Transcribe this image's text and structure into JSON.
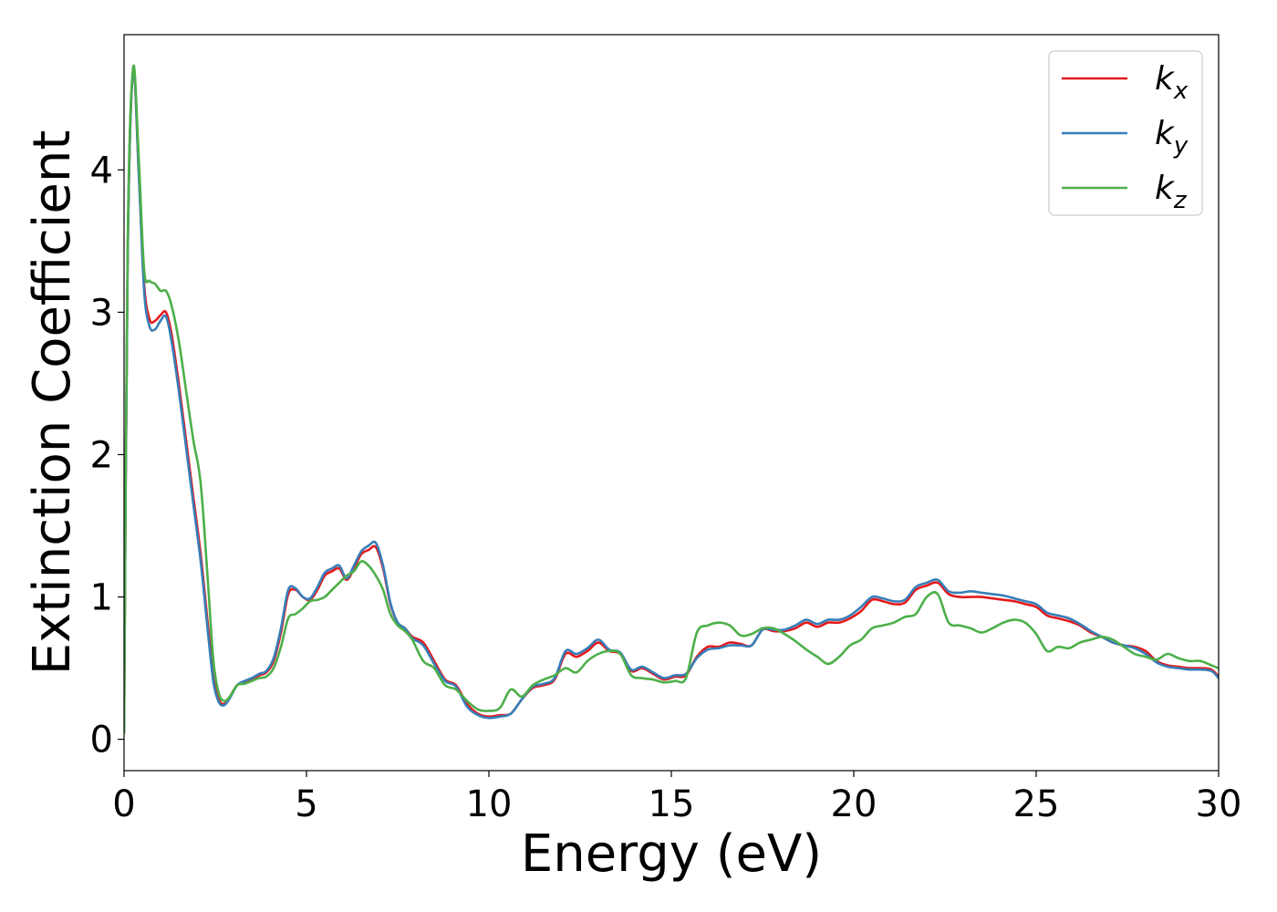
{
  "chart_data": {
    "type": "line",
    "xlabel": "Energy (eV)",
    "ylabel": "Extinction Coefficient",
    "xlim": [
      0,
      30
    ],
    "ylim": [
      -0.22,
      4.95
    ],
    "xticks": [
      0,
      5,
      10,
      15,
      20,
      25,
      30
    ],
    "yticks": [
      0,
      1,
      2,
      3,
      4
    ],
    "grid": false,
    "legend_position": "top-right",
    "series": [
      {
        "name": "k",
        "subscript": "x",
        "color": "#e41a1c",
        "x": [
          0,
          0.1,
          0.25,
          0.4,
          0.55,
          0.7,
          0.85,
          1.0,
          1.15,
          1.3,
          1.5,
          1.7,
          1.9,
          2.1,
          2.3,
          2.45,
          2.6,
          2.75,
          2.9,
          3.1,
          3.3,
          3.5,
          3.7,
          3.9,
          4.1,
          4.3,
          4.5,
          4.7,
          4.9,
          5.1,
          5.3,
          5.5,
          5.7,
          5.9,
          6.1,
          6.3,
          6.5,
          6.7,
          6.9,
          7.1,
          7.3,
          7.5,
          7.7,
          7.9,
          8.2,
          8.5,
          8.8,
          9.1,
          9.4,
          9.7,
          10.0,
          10.3,
          10.6,
          10.9,
          11.2,
          11.5,
          11.8,
          12.1,
          12.4,
          12.7,
          13.0,
          13.3,
          13.6,
          13.9,
          14.2,
          14.5,
          14.8,
          15.1,
          15.4,
          15.7,
          16.0,
          16.3,
          16.6,
          16.9,
          17.2,
          17.5,
          17.8,
          18.1,
          18.4,
          18.7,
          19.0,
          19.3,
          19.6,
          19.9,
          20.2,
          20.5,
          20.8,
          21.1,
          21.4,
          21.7,
          22.0,
          22.3,
          22.6,
          22.9,
          23.2,
          23.5,
          23.8,
          24.1,
          24.4,
          24.7,
          25.0,
          25.3,
          25.6,
          25.9,
          26.2,
          26.5,
          26.8,
          27.1,
          27.4,
          27.7,
          28.0,
          28.3,
          28.6,
          28.9,
          29.2,
          29.5,
          29.8,
          30.0
        ],
        "y": [
          0.05,
          3.4,
          4.7,
          4.0,
          3.2,
          2.95,
          2.94,
          2.98,
          3.0,
          2.85,
          2.5,
          2.1,
          1.7,
          1.3,
          0.8,
          0.45,
          0.28,
          0.25,
          0.3,
          0.38,
          0.4,
          0.42,
          0.45,
          0.47,
          0.55,
          0.75,
          1.02,
          1.05,
          1.0,
          0.98,
          1.05,
          1.15,
          1.18,
          1.2,
          1.12,
          1.2,
          1.3,
          1.33,
          1.35,
          1.2,
          0.95,
          0.82,
          0.78,
          0.72,
          0.68,
          0.55,
          0.42,
          0.38,
          0.25,
          0.18,
          0.16,
          0.17,
          0.18,
          0.28,
          0.36,
          0.38,
          0.42,
          0.6,
          0.58,
          0.62,
          0.68,
          0.62,
          0.6,
          0.48,
          0.5,
          0.46,
          0.42,
          0.44,
          0.45,
          0.58,
          0.65,
          0.65,
          0.68,
          0.67,
          0.66,
          0.77,
          0.76,
          0.76,
          0.78,
          0.82,
          0.79,
          0.82,
          0.82,
          0.85,
          0.9,
          0.98,
          0.97,
          0.95,
          0.96,
          1.05,
          1.08,
          1.1,
          1.02,
          1.0,
          1.0,
          1.0,
          0.99,
          0.98,
          0.97,
          0.95,
          0.93,
          0.87,
          0.85,
          0.83,
          0.8,
          0.75,
          0.72,
          0.68,
          0.66,
          0.65,
          0.62,
          0.55,
          0.52,
          0.51,
          0.5,
          0.5,
          0.49,
          0.44
        ]
      },
      {
        "name": "k",
        "subscript": "y",
        "color": "#377eb8",
        "x": [
          0,
          0.1,
          0.25,
          0.4,
          0.55,
          0.7,
          0.85,
          1.0,
          1.15,
          1.3,
          1.5,
          1.7,
          1.9,
          2.1,
          2.3,
          2.45,
          2.6,
          2.75,
          2.9,
          3.1,
          3.3,
          3.5,
          3.7,
          3.9,
          4.1,
          4.3,
          4.5,
          4.7,
          4.9,
          5.1,
          5.3,
          5.5,
          5.7,
          5.9,
          6.1,
          6.3,
          6.5,
          6.7,
          6.9,
          7.1,
          7.3,
          7.5,
          7.7,
          7.9,
          8.2,
          8.5,
          8.8,
          9.1,
          9.4,
          9.7,
          10.0,
          10.3,
          10.6,
          10.9,
          11.2,
          11.5,
          11.8,
          12.1,
          12.4,
          12.7,
          13.0,
          13.3,
          13.6,
          13.9,
          14.2,
          14.5,
          14.8,
          15.1,
          15.4,
          15.7,
          16.0,
          16.3,
          16.6,
          16.9,
          17.2,
          17.5,
          17.8,
          18.1,
          18.4,
          18.7,
          19.0,
          19.3,
          19.6,
          19.9,
          20.2,
          20.5,
          20.8,
          21.1,
          21.4,
          21.7,
          22.0,
          22.3,
          22.6,
          22.9,
          23.2,
          23.5,
          23.8,
          24.1,
          24.4,
          24.7,
          25.0,
          25.3,
          25.6,
          25.9,
          26.2,
          26.5,
          26.8,
          27.1,
          27.4,
          27.7,
          28.0,
          28.3,
          28.6,
          28.9,
          29.2,
          29.5,
          29.8,
          30.0
        ],
        "y": [
          0.05,
          3.4,
          4.7,
          4.0,
          3.15,
          2.9,
          2.88,
          2.94,
          2.97,
          2.8,
          2.45,
          2.05,
          1.65,
          1.25,
          0.75,
          0.4,
          0.26,
          0.24,
          0.29,
          0.38,
          0.41,
          0.43,
          0.46,
          0.48,
          0.57,
          0.78,
          1.05,
          1.06,
          1.0,
          0.99,
          1.07,
          1.17,
          1.2,
          1.22,
          1.13,
          1.22,
          1.32,
          1.36,
          1.38,
          1.22,
          0.96,
          0.82,
          0.78,
          0.71,
          0.66,
          0.53,
          0.41,
          0.37,
          0.23,
          0.17,
          0.15,
          0.16,
          0.18,
          0.28,
          0.37,
          0.39,
          0.43,
          0.62,
          0.6,
          0.64,
          0.7,
          0.63,
          0.61,
          0.49,
          0.51,
          0.47,
          0.43,
          0.45,
          0.46,
          0.57,
          0.63,
          0.64,
          0.66,
          0.66,
          0.66,
          0.77,
          0.77,
          0.77,
          0.8,
          0.84,
          0.81,
          0.84,
          0.84,
          0.87,
          0.93,
          1.0,
          0.99,
          0.97,
          0.98,
          1.07,
          1.1,
          1.12,
          1.04,
          1.03,
          1.04,
          1.03,
          1.02,
          1.01,
          0.99,
          0.97,
          0.95,
          0.89,
          0.87,
          0.85,
          0.81,
          0.76,
          0.72,
          0.68,
          0.66,
          0.64,
          0.6,
          0.54,
          0.51,
          0.5,
          0.49,
          0.49,
          0.48,
          0.43
        ]
      },
      {
        "name": "k",
        "subscript": "z",
        "color": "#4daf4a",
        "x": [
          0,
          0.1,
          0.25,
          0.4,
          0.55,
          0.7,
          0.85,
          1.0,
          1.15,
          1.3,
          1.5,
          1.7,
          1.9,
          2.1,
          2.3,
          2.45,
          2.6,
          2.75,
          2.9,
          3.1,
          3.3,
          3.5,
          3.7,
          3.9,
          4.1,
          4.3,
          4.5,
          4.7,
          4.9,
          5.1,
          5.3,
          5.5,
          5.7,
          5.9,
          6.1,
          6.3,
          6.5,
          6.7,
          6.9,
          7.1,
          7.3,
          7.5,
          7.7,
          7.9,
          8.2,
          8.5,
          8.8,
          9.1,
          9.4,
          9.7,
          10.0,
          10.3,
          10.6,
          10.9,
          11.2,
          11.5,
          11.8,
          12.1,
          12.4,
          12.7,
          13.0,
          13.3,
          13.6,
          13.9,
          14.2,
          14.5,
          14.8,
          15.1,
          15.4,
          15.7,
          16.0,
          16.3,
          16.6,
          16.9,
          17.2,
          17.5,
          17.8,
          18.1,
          18.4,
          18.7,
          19.0,
          19.3,
          19.6,
          19.9,
          20.2,
          20.5,
          20.8,
          21.1,
          21.4,
          21.7,
          22.0,
          22.3,
          22.6,
          22.9,
          23.2,
          23.5,
          23.8,
          24.1,
          24.4,
          24.7,
          25.0,
          25.3,
          25.6,
          25.9,
          26.2,
          26.5,
          26.8,
          27.1,
          27.4,
          27.7,
          28.0,
          28.3,
          28.6,
          28.9,
          29.2,
          29.5,
          29.8,
          30.0
        ],
        "y": [
          0.05,
          3.5,
          4.72,
          4.1,
          3.3,
          3.22,
          3.2,
          3.15,
          3.15,
          3.05,
          2.8,
          2.45,
          2.1,
          1.8,
          1.1,
          0.55,
          0.32,
          0.27,
          0.3,
          0.38,
          0.39,
          0.41,
          0.43,
          0.44,
          0.5,
          0.65,
          0.85,
          0.88,
          0.92,
          0.97,
          0.98,
          1.0,
          1.05,
          1.1,
          1.15,
          1.18,
          1.25,
          1.22,
          1.15,
          1.05,
          0.88,
          0.8,
          0.76,
          0.7,
          0.55,
          0.5,
          0.38,
          0.35,
          0.27,
          0.21,
          0.2,
          0.22,
          0.35,
          0.3,
          0.38,
          0.42,
          0.45,
          0.5,
          0.47,
          0.55,
          0.6,
          0.62,
          0.6,
          0.45,
          0.43,
          0.42,
          0.4,
          0.41,
          0.43,
          0.75,
          0.8,
          0.82,
          0.8,
          0.73,
          0.74,
          0.78,
          0.78,
          0.74,
          0.69,
          0.63,
          0.58,
          0.53,
          0.58,
          0.66,
          0.7,
          0.78,
          0.8,
          0.82,
          0.86,
          0.88,
          1.0,
          1.02,
          0.82,
          0.8,
          0.78,
          0.75,
          0.78,
          0.82,
          0.84,
          0.82,
          0.74,
          0.62,
          0.65,
          0.64,
          0.68,
          0.7,
          0.72,
          0.7,
          0.65,
          0.6,
          0.58,
          0.56,
          0.6,
          0.57,
          0.55,
          0.55,
          0.52,
          0.5
        ]
      }
    ]
  }
}
